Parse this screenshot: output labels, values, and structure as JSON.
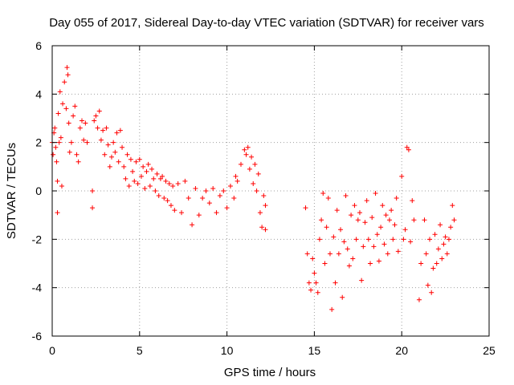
{
  "chart_data": {
    "type": "scatter",
    "title": "Day 055 of 2017, Sidereal Day-to-day VTEC variation (SDTVAR) for receiver vars",
    "xlabel": "GPS time / hours",
    "ylabel": "SDTVAR / TECUs",
    "xlim": [
      0,
      25
    ],
    "ylim": [
      -6,
      6
    ],
    "xticks": [
      0,
      5,
      10,
      15,
      20,
      25
    ],
    "yticks": [
      -6,
      -4,
      -2,
      0,
      2,
      4,
      6
    ],
    "xtick_labels": [
      "0",
      "5",
      "10",
      "15",
      "20",
      "25"
    ],
    "ytick_labels": [
      "-6",
      "-4",
      "-2",
      "0",
      "2",
      "4",
      "6"
    ],
    "grid": true,
    "marker": "+",
    "series": [
      {
        "name": "SDTVAR",
        "color": "#ff0000",
        "points": [
          [
            0.0,
            2.0
          ],
          [
            0.05,
            1.5
          ],
          [
            0.1,
            2.4
          ],
          [
            0.15,
            2.6
          ],
          [
            0.2,
            1.8
          ],
          [
            0.25,
            1.2
          ],
          [
            0.3,
            0.4
          ],
          [
            0.3,
            -0.9
          ],
          [
            0.35,
            3.2
          ],
          [
            0.4,
            2.0
          ],
          [
            0.45,
            4.1
          ],
          [
            0.5,
            2.2
          ],
          [
            0.55,
            0.2
          ],
          [
            0.6,
            3.6
          ],
          [
            0.7,
            4.5
          ],
          [
            0.8,
            3.4
          ],
          [
            0.85,
            5.1
          ],
          [
            0.9,
            4.8
          ],
          [
            0.95,
            2.8
          ],
          [
            1.0,
            1.6
          ],
          [
            1.1,
            2.0
          ],
          [
            1.2,
            3.1
          ],
          [
            1.3,
            3.5
          ],
          [
            1.4,
            1.5
          ],
          [
            1.5,
            1.2
          ],
          [
            1.6,
            2.6
          ],
          [
            1.7,
            2.9
          ],
          [
            1.8,
            2.1
          ],
          [
            1.9,
            2.8
          ],
          [
            2.0,
            2.0
          ],
          [
            2.3,
            0.0
          ],
          [
            2.3,
            -0.7
          ],
          [
            2.4,
            2.9
          ],
          [
            2.5,
            3.1
          ],
          [
            2.6,
            2.6
          ],
          [
            2.7,
            3.3
          ],
          [
            2.8,
            2.1
          ],
          [
            2.9,
            2.5
          ],
          [
            3.0,
            1.5
          ],
          [
            3.1,
            2.6
          ],
          [
            3.2,
            1.9
          ],
          [
            3.3,
            1.0
          ],
          [
            3.4,
            1.4
          ],
          [
            3.5,
            2.0
          ],
          [
            3.6,
            1.6
          ],
          [
            3.7,
            2.4
          ],
          [
            3.8,
            1.2
          ],
          [
            3.9,
            2.5
          ],
          [
            4.0,
            1.8
          ],
          [
            4.1,
            1.0
          ],
          [
            4.2,
            0.5
          ],
          [
            4.3,
            1.5
          ],
          [
            4.4,
            0.2
          ],
          [
            4.5,
            1.3
          ],
          [
            4.6,
            0.8
          ],
          [
            4.7,
            0.4
          ],
          [
            4.8,
            1.2
          ],
          [
            4.9,
            0.3
          ],
          [
            5.0,
            1.3
          ],
          [
            5.1,
            0.6
          ],
          [
            5.2,
            1.0
          ],
          [
            5.3,
            0.1
          ],
          [
            5.4,
            0.8
          ],
          [
            5.5,
            1.1
          ],
          [
            5.6,
            0.2
          ],
          [
            5.7,
            0.9
          ],
          [
            5.8,
            0.5
          ],
          [
            5.9,
            0.0
          ],
          [
            6.0,
            0.7
          ],
          [
            6.1,
            -0.2
          ],
          [
            6.2,
            0.5
          ],
          [
            6.3,
            0.6
          ],
          [
            6.4,
            -0.3
          ],
          [
            6.5,
            0.4
          ],
          [
            6.6,
            -0.4
          ],
          [
            6.7,
            0.3
          ],
          [
            6.8,
            -0.6
          ],
          [
            6.9,
            0.2
          ],
          [
            7.0,
            -0.8
          ],
          [
            7.2,
            0.3
          ],
          [
            7.4,
            -0.9
          ],
          [
            7.6,
            0.4
          ],
          [
            7.8,
            -0.3
          ],
          [
            8.0,
            -1.4
          ],
          [
            8.2,
            0.1
          ],
          [
            8.4,
            -1.0
          ],
          [
            8.6,
            -0.3
          ],
          [
            8.8,
            0.0
          ],
          [
            9.0,
            -0.5
          ],
          [
            9.2,
            0.1
          ],
          [
            9.4,
            -0.9
          ],
          [
            9.6,
            -0.2
          ],
          [
            9.8,
            0.0
          ],
          [
            10.0,
            -0.7
          ],
          [
            10.2,
            0.2
          ],
          [
            10.4,
            -0.3
          ],
          [
            10.5,
            0.6
          ],
          [
            10.6,
            0.4
          ],
          [
            10.8,
            1.1
          ],
          [
            11.0,
            1.7
          ],
          [
            11.1,
            1.5
          ],
          [
            11.2,
            1.8
          ],
          [
            11.3,
            0.9
          ],
          [
            11.4,
            1.4
          ],
          [
            11.5,
            0.3
          ],
          [
            11.6,
            1.1
          ],
          [
            11.7,
            0.0
          ],
          [
            11.8,
            0.7
          ],
          [
            11.9,
            -0.9
          ],
          [
            12.0,
            -1.5
          ],
          [
            12.1,
            -0.2
          ],
          [
            12.2,
            -1.6
          ],
          [
            12.2,
            -0.6
          ],
          [
            14.5,
            -0.7
          ],
          [
            14.6,
            -2.6
          ],
          [
            14.7,
            -3.8
          ],
          [
            14.8,
            -4.1
          ],
          [
            14.9,
            -2.8
          ],
          [
            15.0,
            -3.4
          ],
          [
            15.1,
            -3.8
          ],
          [
            15.2,
            -4.2
          ],
          [
            15.3,
            -2.0
          ],
          [
            15.4,
            -1.2
          ],
          [
            15.5,
            -0.1
          ],
          [
            15.6,
            -3.0
          ],
          [
            15.7,
            -1.5
          ],
          [
            15.8,
            -0.3
          ],
          [
            15.9,
            -2.6
          ],
          [
            16.0,
            -4.9
          ],
          [
            16.1,
            -1.9
          ],
          [
            16.2,
            -3.8
          ],
          [
            16.3,
            -0.8
          ],
          [
            16.4,
            -2.6
          ],
          [
            16.5,
            -1.6
          ],
          [
            16.6,
            -4.4
          ],
          [
            16.7,
            -2.1
          ],
          [
            16.8,
            -0.2
          ],
          [
            16.9,
            -2.4
          ],
          [
            17.0,
            -3.1
          ],
          [
            17.1,
            -1.0
          ],
          [
            17.2,
            -2.8
          ],
          [
            17.3,
            -0.6
          ],
          [
            17.4,
            -2.0
          ],
          [
            17.5,
            -1.2
          ],
          [
            17.6,
            -0.9
          ],
          [
            17.7,
            -3.7
          ],
          [
            17.8,
            -2.3
          ],
          [
            17.9,
            -1.3
          ],
          [
            18.0,
            -0.4
          ],
          [
            18.1,
            -2.0
          ],
          [
            18.2,
            -3.0
          ],
          [
            18.3,
            -1.1
          ],
          [
            18.4,
            -2.3
          ],
          [
            18.5,
            -0.1
          ],
          [
            18.6,
            -1.8
          ],
          [
            18.7,
            -2.9
          ],
          [
            18.8,
            -1.5
          ],
          [
            18.9,
            -0.6
          ],
          [
            19.0,
            -2.2
          ],
          [
            19.1,
            -1.0
          ],
          [
            19.2,
            -2.6
          ],
          [
            19.3,
            -1.2
          ],
          [
            19.4,
            -0.8
          ],
          [
            19.5,
            -2.0
          ],
          [
            19.6,
            -1.4
          ],
          [
            19.7,
            -0.3
          ],
          [
            19.8,
            -2.5
          ],
          [
            20.0,
            0.6
          ],
          [
            20.1,
            -2.0
          ],
          [
            20.2,
            -1.6
          ],
          [
            20.3,
            1.8
          ],
          [
            20.4,
            1.7
          ],
          [
            20.5,
            -2.1
          ],
          [
            20.6,
            -0.4
          ],
          [
            20.7,
            -1.2
          ],
          [
            21.0,
            -4.5
          ],
          [
            21.1,
            -3.0
          ],
          [
            21.3,
            -1.2
          ],
          [
            21.4,
            -2.6
          ],
          [
            21.5,
            -3.9
          ],
          [
            21.6,
            -2.0
          ],
          [
            21.7,
            -4.2
          ],
          [
            21.8,
            -3.2
          ],
          [
            21.9,
            -1.8
          ],
          [
            22.0,
            -3.0
          ],
          [
            22.1,
            -2.4
          ],
          [
            22.2,
            -1.4
          ],
          [
            22.3,
            -2.8
          ],
          [
            22.4,
            -2.2
          ],
          [
            22.5,
            -1.9
          ],
          [
            22.6,
            -2.6
          ],
          [
            22.7,
            -2.0
          ],
          [
            22.8,
            -1.5
          ],
          [
            22.9,
            -0.6
          ],
          [
            23.0,
            -1.2
          ]
        ]
      }
    ]
  }
}
